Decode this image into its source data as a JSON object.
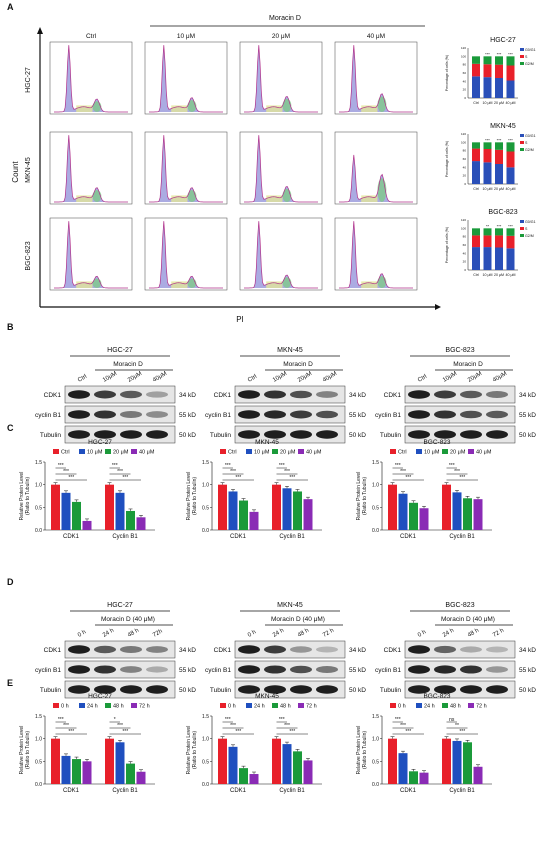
{
  "panels": {
    "A": "A",
    "B": "B",
    "C": "C",
    "D": "D",
    "E": "E"
  },
  "colors": {
    "ctrl": "#e8202a",
    "c10": "#1f4fbf",
    "c20": "#1b9a3a",
    "c40": "#8a2bb5",
    "g1": "#2a4fb8",
    "s": "#e8202a",
    "g2": "#1a9a3a",
    "hist_fill": "#8f8fd8",
    "s_fill": "#e2e69a",
    "g2_fill": "#7fc98a"
  },
  "panelA": {
    "group": "Moracin D",
    "cols": [
      "Ctrl",
      "10 μM",
      "20 μM",
      "40 μM"
    ],
    "rows": [
      "HGC-27",
      "MKN-45",
      "BGC-823"
    ],
    "ylabel": "Count",
    "xlabel": "PI"
  },
  "stacked": [
    {
      "title": "HGC-27",
      "ylabel": "Percentage of cells (%)",
      "categories": [
        "Ctrl",
        "10 μM",
        "20 μM",
        "40 μM"
      ],
      "sig": [
        "***",
        "***",
        "***"
      ],
      "g1": [
        52,
        50,
        48,
        42
      ],
      "s": [
        30,
        31,
        32,
        36
      ],
      "g2": [
        18,
        19,
        20,
        22
      ],
      "legend": [
        "G0/G1",
        "S",
        "G2/M"
      ],
      "ticks": [
        "0",
        "20",
        "40",
        "60",
        "80",
        "100",
        "120"
      ]
    },
    {
      "title": "MKN-45",
      "ylabel": "Percentage of cells (%)",
      "categories": [
        "Ctrl",
        "10 μM",
        "20 μM",
        "40 μM"
      ],
      "sig": [
        "***",
        "***",
        "***"
      ],
      "g1": [
        55,
        52,
        48,
        40
      ],
      "s": [
        30,
        32,
        34,
        38
      ],
      "g2": [
        15,
        16,
        18,
        22
      ],
      "legend": [
        "G0/G1",
        "S",
        "G2/M"
      ],
      "ticks": [
        "0",
        "20",
        "40",
        "60",
        "80",
        "100",
        "120"
      ]
    },
    {
      "title": "BGC-823",
      "ylabel": "Percentage of cells (%)",
      "categories": [
        "Ctrl",
        "10 μM",
        "20 μM",
        "40 μM"
      ],
      "sig": [
        "**",
        "***",
        "***"
      ],
      "g1": [
        55,
        55,
        54,
        52
      ],
      "s": [
        28,
        28,
        29,
        30
      ],
      "g2": [
        17,
        17,
        17,
        18
      ],
      "legend": [
        "G0/G1",
        "S",
        "G2/M"
      ],
      "ticks": [
        "0",
        "20",
        "40",
        "60",
        "80",
        "100",
        "120"
      ]
    }
  ],
  "blotsB": [
    {
      "line": "HGC-27",
      "group": "Moracin D",
      "lanes": [
        "Ctrl",
        "10μM",
        "20μM",
        "40μM"
      ],
      "bands": [
        "CDK1",
        "cyclin B1",
        "Tubulin"
      ],
      "kd": [
        "34 kD",
        "55 kD",
        "50 kD"
      ],
      "intensity": [
        [
          1,
          0.85,
          0.7,
          0.35
        ],
        [
          1,
          0.9,
          0.55,
          0.45
        ],
        [
          1,
          1,
          1,
          1
        ]
      ]
    },
    {
      "line": "MKN-45",
      "group": "Moracin D",
      "lanes": [
        "Ctrl",
        "10μM",
        "20μM",
        "40μM"
      ],
      "bands": [
        "CDK1",
        "cyclin B1",
        "Tubulin"
      ],
      "kd": [
        "34 kD",
        "55 kD",
        "50 kD"
      ],
      "intensity": [
        [
          1,
          0.9,
          0.75,
          0.5
        ],
        [
          1,
          0.95,
          0.85,
          0.75
        ],
        [
          1,
          1,
          1,
          1
        ]
      ]
    },
    {
      "line": "BGC-823",
      "group": "Moracin D",
      "lanes": [
        "Ctrl",
        "10μM",
        "20μM",
        "40μM"
      ],
      "bands": [
        "CDK1",
        "cyclin B1",
        "Tubulin"
      ],
      "kd": [
        "34 kD",
        "55 kD",
        "50 kD"
      ],
      "intensity": [
        [
          1,
          0.85,
          0.7,
          0.55
        ],
        [
          1,
          0.9,
          0.75,
          0.7
        ],
        [
          1,
          1,
          1,
          1
        ]
      ]
    }
  ],
  "blotsD": [
    {
      "line": "HGC-27",
      "group": "Moracin D (40 μM)",
      "lanes": [
        "0 h",
        "24 h",
        "48 h",
        "72h"
      ],
      "bands": [
        "CDK1",
        "cyclin B1",
        "Tubulin"
      ],
      "kd": [
        "34 kD",
        "55 kD",
        "50 kD"
      ],
      "intensity": [
        [
          1,
          0.7,
          0.55,
          0.5
        ],
        [
          1,
          0.9,
          0.5,
          0.3
        ],
        [
          1,
          1,
          1,
          1
        ]
      ]
    },
    {
      "line": "MKN-45",
      "group": "Moracin D (40 μM)",
      "lanes": [
        "0 h",
        "24 h",
        "48 h",
        "72 h"
      ],
      "bands": [
        "CDK1",
        "cyclin B1",
        "Tubulin"
      ],
      "kd": [
        "34 kD",
        "55 kD",
        "50 kD"
      ],
      "intensity": [
        [
          1,
          0.85,
          0.4,
          0.25
        ],
        [
          1,
          0.9,
          0.75,
          0.55
        ],
        [
          1,
          1,
          1,
          1
        ]
      ]
    },
    {
      "line": "BGC-823",
      "group": "Moracin D (40 μM)",
      "lanes": [
        "0 h",
        "24 h",
        "48 h",
        "72 h"
      ],
      "bands": [
        "CDK1",
        "cyclin B1",
        "Tubulin"
      ],
      "kd": [
        "34 kD",
        "55 kD",
        "50 kD"
      ],
      "intensity": [
        [
          1,
          0.65,
          0.3,
          0.25
        ],
        [
          1,
          0.95,
          0.9,
          0.4
        ],
        [
          1,
          1,
          1,
          1
        ]
      ]
    }
  ],
  "chart_data": [
    {
      "type": "bar",
      "title": "HGC-27",
      "legend": [
        "Ctrl",
        "10 μM",
        "20 μM",
        "40 μM"
      ],
      "categories": [
        "CDK1",
        "Cyclin B1"
      ],
      "ylabel": "Relative Protein Level\n(Ratio to Tubulin)",
      "ylim": [
        0,
        1.5
      ],
      "ticks": [
        "0.0",
        "0.5",
        "1.0",
        "1.5"
      ],
      "series": [
        {
          "name": "Ctrl",
          "values": [
            1.0,
            1.0
          ]
        },
        {
          "name": "10 μM",
          "values": [
            0.82,
            0.82
          ]
        },
        {
          "name": "20 μM",
          "values": [
            0.62,
            0.42
          ]
        },
        {
          "name": "40 μM",
          "values": [
            0.2,
            0.28
          ]
        }
      ],
      "sig": [
        "***",
        "***",
        "***",
        "***",
        "***",
        "***"
      ]
    },
    {
      "type": "bar",
      "title": "MKN-45",
      "legend": [
        "Ctrl",
        "10 μM",
        "20 μM",
        "40 μM"
      ],
      "categories": [
        "CDK1",
        "Cyclin B1"
      ],
      "ylabel": "Relative Protein Level\n(Ratio to Tubulin)",
      "ylim": [
        0,
        1.5
      ],
      "ticks": [
        "0.0",
        "0.5",
        "1.0",
        "1.5"
      ],
      "series": [
        {
          "name": "Ctrl",
          "values": [
            1.0,
            1.0
          ]
        },
        {
          "name": "10 μM",
          "values": [
            0.85,
            0.92
          ]
        },
        {
          "name": "20 μM",
          "values": [
            0.65,
            0.85
          ]
        },
        {
          "name": "40 μM",
          "values": [
            0.4,
            0.68
          ]
        }
      ],
      "sig": [
        "***",
        "***",
        "***",
        "***",
        "***",
        "***"
      ]
    },
    {
      "type": "bar",
      "title": "BGC-823",
      "legend": [
        "Ctrl",
        "10 μM",
        "20 μM",
        "40 μM"
      ],
      "categories": [
        "CDK1",
        "Cyclin B1"
      ],
      "ylabel": "Relative Protein Level\n(Ratio to Tubulin)",
      "ylim": [
        0,
        1.5
      ],
      "ticks": [
        "0.0",
        "0.5",
        "1.0",
        "1.5"
      ],
      "series": [
        {
          "name": "Ctrl",
          "values": [
            1.0,
            1.0
          ]
        },
        {
          "name": "10 μM",
          "values": [
            0.8,
            0.83
          ]
        },
        {
          "name": "20 μM",
          "values": [
            0.6,
            0.7
          ]
        },
        {
          "name": "40 μM",
          "values": [
            0.48,
            0.68
          ]
        }
      ],
      "sig": [
        "***",
        "***",
        "***",
        "***",
        "***",
        "***"
      ]
    },
    {
      "type": "bar",
      "title": "HGC-27",
      "legend": [
        "0 h",
        "24 h",
        "48 h",
        "72 h"
      ],
      "categories": [
        "CDK1",
        "Cyclin B1"
      ],
      "ylabel": "Relative Protein Level\n(Ratio to Tubulin)",
      "ylim": [
        0,
        1.5
      ],
      "ticks": [
        "0.0",
        "0.5",
        "1.0",
        "1.5"
      ],
      "series": [
        {
          "name": "0 h",
          "values": [
            1.0,
            1.0
          ]
        },
        {
          "name": "24 h",
          "values": [
            0.62,
            0.92
          ]
        },
        {
          "name": "48 h",
          "values": [
            0.55,
            0.45
          ]
        },
        {
          "name": "72 h",
          "values": [
            0.5,
            0.27
          ]
        }
      ],
      "sig": [
        "***",
        "***",
        "***",
        "*",
        "***",
        "***"
      ]
    },
    {
      "type": "bar",
      "title": "MKN-45",
      "legend": [
        "0 h",
        "24 h",
        "48 h",
        "72 h"
      ],
      "categories": [
        "CDK1",
        "Cyclin B1"
      ],
      "ylabel": "Relative Protein Level\n(Ratio to Tubulin)",
      "ylim": [
        0,
        1.5
      ],
      "ticks": [
        "0.0",
        "0.5",
        "1.0",
        "1.5"
      ],
      "series": [
        {
          "name": "0 h",
          "values": [
            1.0,
            1.0
          ]
        },
        {
          "name": "24 h",
          "values": [
            0.82,
            0.88
          ]
        },
        {
          "name": "48 h",
          "values": [
            0.35,
            0.72
          ]
        },
        {
          "name": "72 h",
          "values": [
            0.22,
            0.52
          ]
        }
      ],
      "sig": [
        "***",
        "***",
        "***",
        "***",
        "***",
        "***"
      ]
    },
    {
      "type": "bar",
      "title": "BGC-823",
      "legend": [
        "0 h",
        "24 h",
        "48 h",
        "72 h"
      ],
      "categories": [
        "CDK1",
        "Cyclin B1"
      ],
      "ylabel": "Relative Protein Level\n(Ratio to Tubulin)",
      "ylim": [
        0,
        1.5
      ],
      "ticks": [
        "0.0",
        "0.5",
        "1.0",
        "1.5"
      ],
      "series": [
        {
          "name": "0 h",
          "values": [
            1.0,
            1.0
          ]
        },
        {
          "name": "24 h",
          "values": [
            0.68,
            0.95
          ]
        },
        {
          "name": "48 h",
          "values": [
            0.28,
            0.92
          ]
        },
        {
          "name": "72 h",
          "values": [
            0.25,
            0.38
          ]
        }
      ],
      "sig": [
        "***",
        "***",
        "***",
        "ns",
        "**",
        "***"
      ]
    }
  ]
}
